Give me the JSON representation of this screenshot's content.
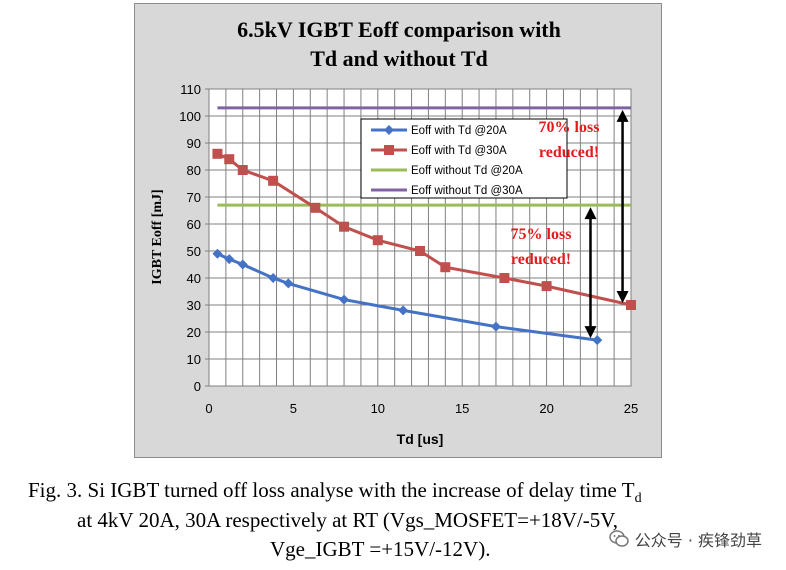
{
  "chart_data": {
    "type": "line",
    "title_line1": "6.5kV IGBT Eoff comparison with",
    "title_line2": "Td and without Td",
    "xlabel": "Td [us]",
    "ylabel": "IGBT Eoff [mJ]",
    "xlim": [
      0,
      25
    ],
    "ylim": [
      0,
      110
    ],
    "xticks": [
      0,
      5,
      10,
      15,
      20,
      25
    ],
    "yticks": [
      0,
      10,
      20,
      30,
      40,
      50,
      60,
      70,
      80,
      90,
      100,
      110
    ],
    "grid": true,
    "legend_position": "top-right",
    "series": [
      {
        "name": "Eoff with Td @20A",
        "color": "#4472c4",
        "marker": "diamond",
        "x": [
          0.5,
          1.2,
          2.0,
          3.8,
          4.7,
          8.0,
          11.5,
          17.0,
          23.0
        ],
        "y": [
          49,
          47,
          45,
          40,
          38,
          32,
          28,
          22,
          17
        ]
      },
      {
        "name": "Eoff with Td @30A",
        "color": "#c0504d",
        "marker": "square",
        "x": [
          0.5,
          1.2,
          2.0,
          3.8,
          6.3,
          8.0,
          10.0,
          12.5,
          14.0,
          17.5,
          20.0,
          25.0
        ],
        "y": [
          86,
          84,
          80,
          76,
          66,
          59,
          54,
          50,
          44,
          40,
          37,
          30
        ]
      },
      {
        "name": "Eoff without Td @20A",
        "color": "#9bbb59",
        "marker": "none",
        "x": [
          0.5,
          25.0
        ],
        "y": [
          67,
          67
        ]
      },
      {
        "name": "Eoff without Td @30A",
        "color": "#8064a2",
        "marker": "none",
        "x": [
          0.5,
          25.0
        ],
        "y": [
          103,
          103
        ]
      }
    ],
    "annotations": [
      {
        "line1": "70% loss",
        "line2": "reduced!",
        "color": "#e31a1c",
        "arrow_x": 24.5,
        "arrow_y": [
          30,
          103
        ]
      },
      {
        "line1": "75% loss",
        "line2": "reduced!",
        "color": "#e31a1c",
        "arrow_x": 22.6,
        "arrow_y": [
          17,
          67
        ]
      }
    ]
  },
  "caption": {
    "line1": "Fig. 3.   Si IGBT turned off loss analyse with the increase of delay time T",
    "line1_sub": "d",
    "line2": "at 4kV 20A, 30A respectively at RT (Vgs_MOSFET=+18V/-5V,",
    "line3": "Vge_IGBT =+15V/-12V)."
  },
  "watermark": {
    "text": "公众号 · 疾锋劲草",
    "icon": "wechat-icon"
  }
}
